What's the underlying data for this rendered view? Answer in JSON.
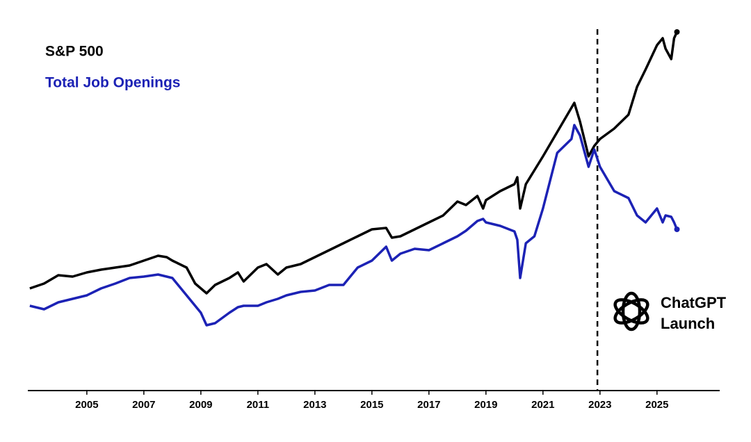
{
  "chart_data": {
    "type": "line",
    "x": [
      2003,
      2003.5,
      2004,
      2004.5,
      2005,
      2005.5,
      2006,
      2006.5,
      2007,
      2007.5,
      2007.8,
      2008,
      2008.5,
      2008.8,
      2009,
      2009.2,
      2009.5,
      2010,
      2010.3,
      2010.5,
      2011,
      2011.3,
      2011.7,
      2012,
      2012.5,
      2013,
      2013.5,
      2014,
      2014.5,
      2015,
      2015.5,
      2015.7,
      2016,
      2016.5,
      2017,
      2017.5,
      2018,
      2018.3,
      2018.7,
      2018.9,
      2019,
      2019.5,
      2020,
      2020.1,
      2020.2,
      2020.4,
      2020.7,
      2021,
      2021.5,
      2022,
      2022.1,
      2022.3,
      2022.6,
      2022.8,
      2023,
      2023.5,
      2024,
      2024.3,
      2024.6,
      2025,
      2025.2,
      2025.3,
      2025.5,
      2025.6,
      2025.7
    ],
    "series": [
      {
        "name": "S&P 500",
        "color": "#000000",
        "values": [
          29.4,
          30.8,
          33.2,
          32.8,
          34,
          34.8,
          35.4,
          36,
          37.4,
          38.8,
          38.4,
          37.4,
          35.4,
          30.8,
          29.4,
          28,
          30.4,
          32.4,
          34,
          31.4,
          35.4,
          36.4,
          33.4,
          35.4,
          36.4,
          38.4,
          40.4,
          42.4,
          44.4,
          46.4,
          46.8,
          44,
          44.4,
          46.4,
          48.4,
          50.4,
          54.4,
          53.4,
          56,
          52.4,
          54.8,
          57.4,
          59.4,
          61.4,
          52.4,
          59.4,
          63.4,
          67.4,
          74.4,
          81.4,
          82.8,
          77.4,
          67.4,
          70.4,
          72.4,
          75.4,
          79.4,
          87.4,
          92.4,
          99.4,
          101.4,
          98.4,
          95.4,
          101.4,
          103.2
        ]
      },
      {
        "name": "Total Job Openings",
        "color": "#1c22b5",
        "values": [
          24.4,
          23.4,
          25.4,
          26.4,
          27.4,
          29.4,
          30.8,
          32.4,
          32.8,
          33.4,
          32.8,
          32.4,
          27.4,
          24.4,
          22.4,
          18.8,
          19.4,
          22.4,
          24,
          24.4,
          24.4,
          25.4,
          26.4,
          27.4,
          28.4,
          28.8,
          30.4,
          30.4,
          35.4,
          37.4,
          41.4,
          37.4,
          39.4,
          40.8,
          40.4,
          42.4,
          44.4,
          46,
          48.8,
          49.4,
          48.4,
          47.4,
          45.8,
          43.4,
          32.4,
          42.4,
          44.4,
          52.4,
          68.4,
          72.4,
          76.4,
          73.4,
          64.4,
          69.4,
          64.4,
          57.4,
          55.4,
          50.4,
          48.4,
          52.4,
          48.4,
          50.4,
          50,
          48.4,
          46.4
        ]
      }
    ],
    "xlim": [
      2002.93,
      2027.2
    ],
    "xticks": [
      2005,
      2007,
      2009,
      2011,
      2013,
      2015,
      2017,
      2019,
      2021,
      2023,
      2025
    ],
    "ylim": [
      0,
      104.4
    ],
    "legend": "top-left",
    "annotation": {
      "x": 2022.91,
      "text": [
        "ChatGPT",
        "Launch"
      ]
    }
  }
}
